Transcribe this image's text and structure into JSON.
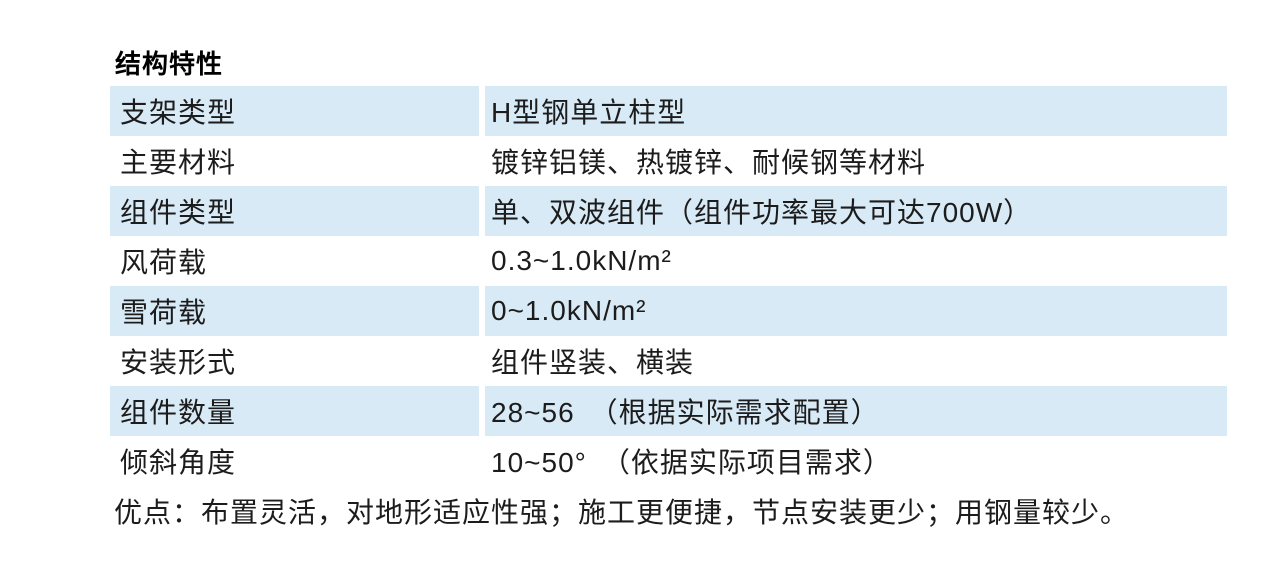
{
  "section": {
    "title": "结构特性"
  },
  "table": {
    "rows": [
      {
        "label": "支架类型",
        "value": "H型钢单立柱型"
      },
      {
        "label": "主要材料",
        "value": "镀锌铝镁、热镀锌、耐候钢等材料"
      },
      {
        "label": "组件类型",
        "value": "单、双波组件（组件功率最大可达700W）"
      },
      {
        "label": "风荷载",
        "value": "0.3~1.0kN/m²"
      },
      {
        "label": "雪荷载",
        "value": "0~1.0kN/m²"
      },
      {
        "label": "安装形式",
        "value": "组件竖装、横装"
      },
      {
        "label": "组件数量",
        "value": "28~56　（根据实际需求配置）"
      },
      {
        "label": "倾斜角度",
        "value": "10~50°　（依据实际项目需求）"
      }
    ]
  },
  "footnote": {
    "advantages": "优点：布置灵活，对地形适应性强；施工更便捷，节点安装更少；用钢量较少。"
  },
  "colors": {
    "stripe_blue": "#d9eaf7",
    "text": "#1c1c1c",
    "background": "#ffffff"
  }
}
